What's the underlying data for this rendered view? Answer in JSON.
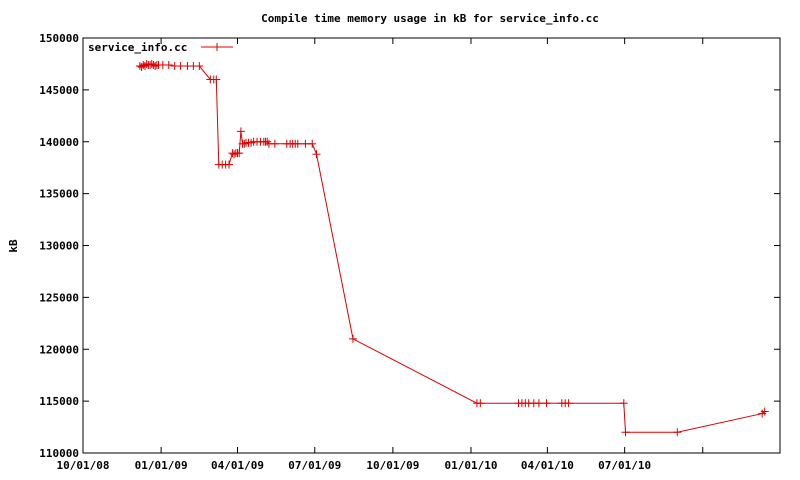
{
  "chart_data": {
    "type": "line",
    "title": "Compile time memory usage in kB for service_info.cc",
    "xlabel": "",
    "ylabel": "kB",
    "x_tick_labels": [
      "10/01/08",
      "01/01/09",
      "04/01/09",
      "07/01/09",
      "10/01/09",
      "01/01/10",
      "04/01/10",
      "07/01/10"
    ],
    "x_tick_dates": [
      "2008-10-01",
      "2009-01-01",
      "2009-04-01",
      "2009-07-01",
      "2009-10-01",
      "2010-01-01",
      "2010-04-01",
      "2010-07-01"
    ],
    "xlim": [
      "2008-10-01",
      "2010-12-31"
    ],
    "ylim": [
      110000,
      150000
    ],
    "y_ticks": [
      110000,
      115000,
      120000,
      125000,
      130000,
      135000,
      140000,
      145000,
      150000
    ],
    "y_tick_labels": [
      "110000",
      "115000",
      "120000",
      "125000",
      "130000",
      "135000",
      "140000",
      "145000",
      "150000"
    ],
    "grid": false,
    "legend_position": "top-left",
    "color": "#dd0000",
    "series": [
      {
        "name": "service_info.cc",
        "x": [
          "2008-12-07",
          "2008-12-09",
          "2008-12-11",
          "2008-12-13",
          "2008-12-15",
          "2008-12-17",
          "2008-12-19",
          "2008-12-21",
          "2008-12-23",
          "2008-12-25",
          "2008-12-27",
          "2008-12-29",
          "2009-01-03",
          "2009-01-10",
          "2009-01-17",
          "2009-01-24",
          "2009-02-01",
          "2009-02-08",
          "2009-02-15",
          "2009-02-28",
          "2009-03-04",
          "2009-03-07",
          "2009-03-10",
          "2009-03-14",
          "2009-03-18",
          "2009-03-22",
          "2009-03-26",
          "2009-03-28",
          "2009-03-30",
          "2009-04-01",
          "2009-04-03",
          "2009-04-05",
          "2009-04-07",
          "2009-04-09",
          "2009-04-11",
          "2009-04-14",
          "2009-04-17",
          "2009-04-20",
          "2009-04-24",
          "2009-04-28",
          "2009-05-02",
          "2009-05-04",
          "2009-05-06",
          "2009-05-08",
          "2009-05-15",
          "2009-05-29",
          "2009-06-02",
          "2009-06-05",
          "2009-06-08",
          "2009-06-11",
          "2009-06-20",
          "2009-06-28",
          "2009-07-03",
          "2009-08-15",
          "2010-01-08",
          "2010-01-12",
          "2010-02-26",
          "2010-03-02",
          "2010-03-06",
          "2010-03-10",
          "2010-03-16",
          "2010-03-22",
          "2010-03-31",
          "2010-04-18",
          "2010-04-22",
          "2010-04-26",
          "2010-06-30",
          "2010-07-02",
          "2010-09-01",
          "2010-12-10",
          "2010-12-13"
        ],
        "values": [
          147300,
          147200,
          147400,
          147300,
          147500,
          147400,
          147400,
          147500,
          147400,
          147300,
          147400,
          147400,
          147400,
          147400,
          147300,
          147300,
          147300,
          147300,
          147300,
          146000,
          146000,
          146000,
          137800,
          137800,
          137800,
          137800,
          138900,
          138800,
          138900,
          138900,
          138900,
          141000,
          139800,
          139800,
          139900,
          139900,
          139900,
          140000,
          140000,
          140000,
          140000,
          140000,
          140000,
          139800,
          139800,
          139800,
          139800,
          139800,
          139800,
          139800,
          139800,
          139800,
          138800,
          121000,
          114800,
          114800,
          114800,
          114800,
          114800,
          114800,
          114800,
          114800,
          114800,
          114800,
          114800,
          114800,
          114800,
          112000,
          112000,
          113800,
          114000
        ]
      }
    ]
  }
}
